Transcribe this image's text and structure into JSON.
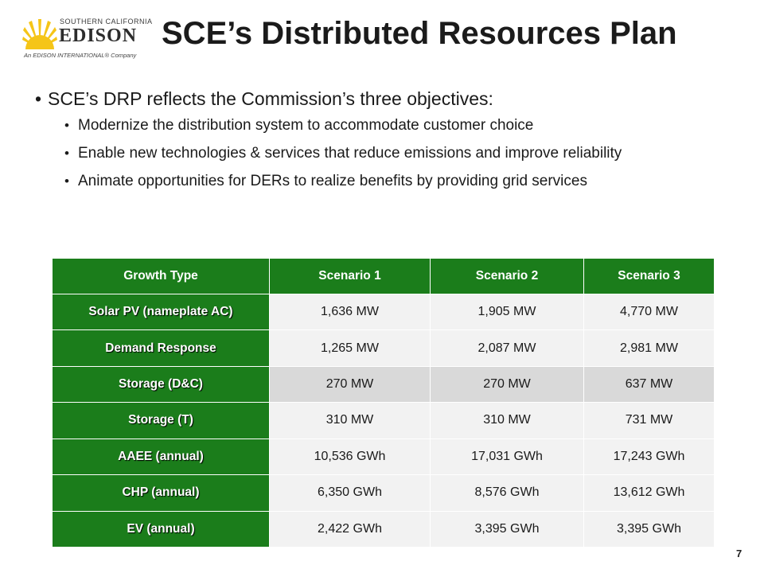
{
  "logo": {
    "line1": "SOUTHERN CALIFORNIA",
    "line2": "EDISON",
    "line3": "An EDISON INTERNATIONAL® Company",
    "accent_color": "#f5c518"
  },
  "title": "SCE’s Distributed Resources Plan",
  "main_bullet": "SCE’s DRP reflects the Commission’s three objectives:",
  "sub_bullets": [
    "Modernize the distribution system to accommodate customer choice",
    "Enable new technologies & services that reduce emissions and improve reliability",
    "Animate opportunities for DERs to realize benefits by providing grid services"
  ],
  "table": {
    "header_color": "#1b7d1b",
    "headers": [
      "Growth Type",
      "Scenario 1",
      "Scenario 2",
      "Scenario 3"
    ],
    "rows": [
      [
        "Solar PV (nameplate AC)",
        "1,636 MW",
        "1,905 MW",
        "4,770 MW"
      ],
      [
        "Demand Response",
        "1,265 MW",
        "2,087 MW",
        "2,981 MW"
      ],
      [
        "Storage (D&C)",
        "270 MW",
        "270 MW",
        "637 MW"
      ],
      [
        "Storage (T)",
        "310 MW",
        "310 MW",
        "731 MW"
      ],
      [
        "AAEE (annual)",
        "10,536 GWh",
        "17,031 GWh",
        "17,243 GWh"
      ],
      [
        "CHP (annual)",
        "6,350 GWh",
        "8,576 GWh",
        "13,612 GWh"
      ],
      [
        "EV (annual)",
        "2,422 GWh",
        "3,395 GWh",
        "3,395 GWh"
      ]
    ]
  },
  "page_number": "7"
}
